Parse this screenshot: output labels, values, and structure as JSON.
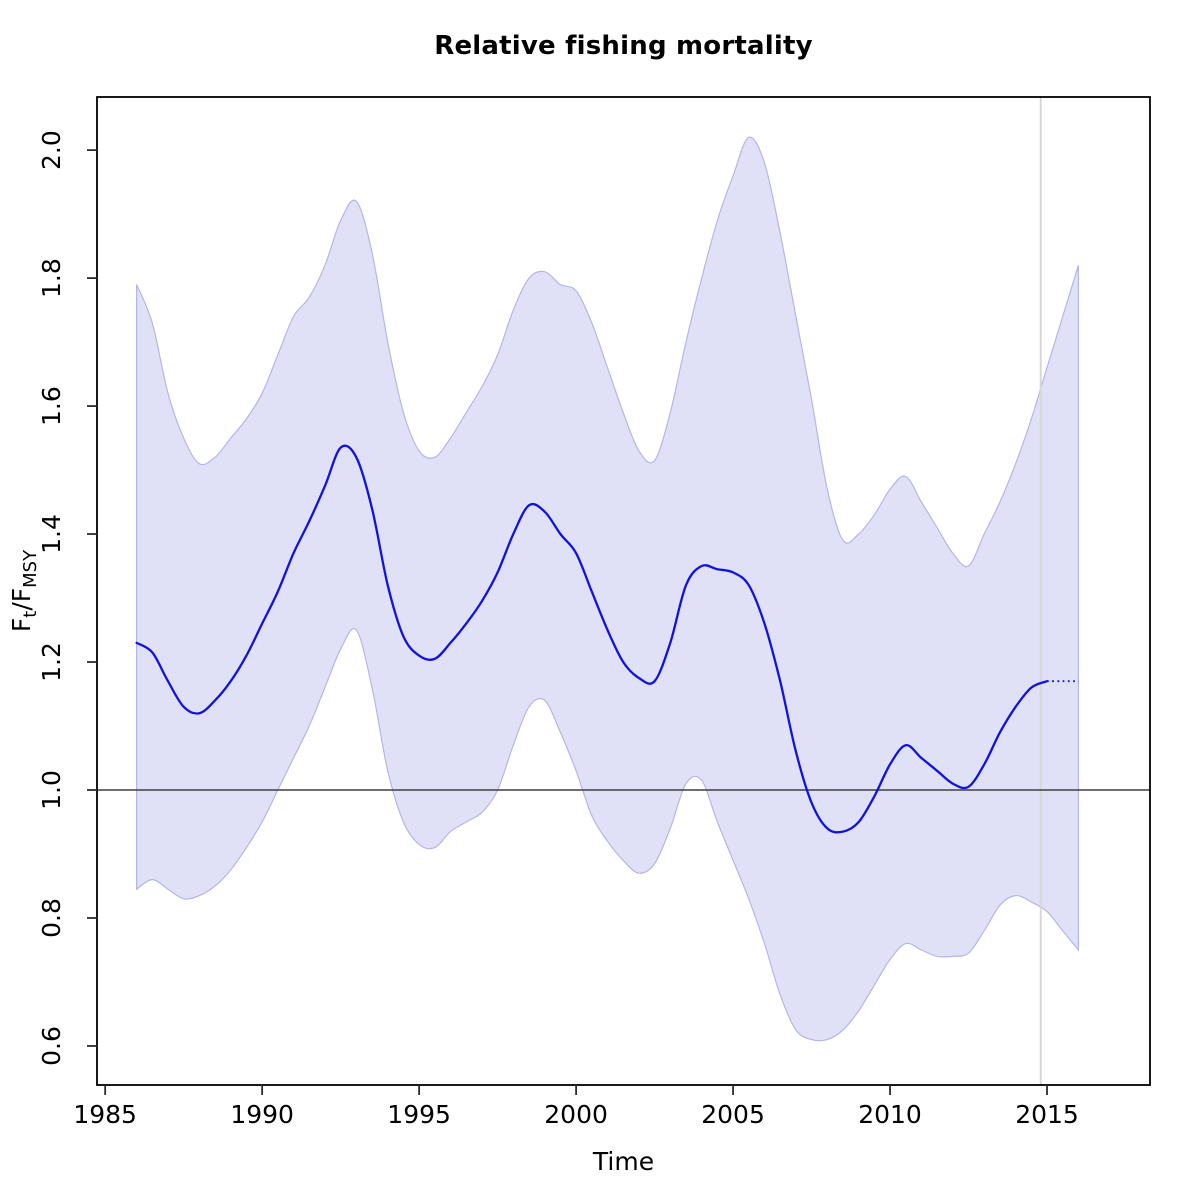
{
  "chart_data": {
    "type": "line",
    "title": "Relative fishing mortality",
    "xlabel": "Time",
    "ylabel": "Ft/FMSY",
    "ylabel_parts": {
      "base1": "F",
      "sub1": "t",
      "mid": "/F",
      "sub2": "MSY"
    },
    "xlim": [
      1984.74,
      2018.28
    ],
    "ylim": [
      0.539,
      2.083
    ],
    "x_ticks": [
      1985,
      1990,
      1995,
      2000,
      2005,
      2010,
      2015
    ],
    "y_ticks": [
      0.6,
      0.8,
      1.0,
      1.2,
      1.4,
      1.6,
      1.8,
      2.0
    ],
    "grid": false,
    "legend": null,
    "reference_lines": {
      "horizontal_y": 1.0,
      "vertical_x": 2014.8
    },
    "forecast_start": 2015,
    "series": {
      "years": [
        1986,
        1986.5,
        1987,
        1987.5,
        1988,
        1988.5,
        1989,
        1989.5,
        1990,
        1990.5,
        1991,
        1991.5,
        1992,
        1992.5,
        1993,
        1993.5,
        1994,
        1994.5,
        1995,
        1995.5,
        1996,
        1996.5,
        1997,
        1997.5,
        1998,
        1998.5,
        1999,
        1999.5,
        2000,
        2000.5,
        2001,
        2001.5,
        2002,
        2002.5,
        2003,
        2003.5,
        2004,
        2004.5,
        2005,
        2005.5,
        2006,
        2006.5,
        2007,
        2007.5,
        2008,
        2008.5,
        2009,
        2009.5,
        2010,
        2010.5,
        2011,
        2011.5,
        2012,
        2012.5,
        2013,
        2013.5,
        2014,
        2014.5,
        2015,
        2015.5,
        2016
      ],
      "median": [
        1.23,
        1.215,
        1.17,
        1.13,
        1.12,
        1.14,
        1.17,
        1.21,
        1.26,
        1.31,
        1.37,
        1.42,
        1.475,
        1.535,
        1.52,
        1.44,
        1.32,
        1.24,
        1.21,
        1.205,
        1.23,
        1.26,
        1.295,
        1.34,
        1.4,
        1.445,
        1.435,
        1.4,
        1.37,
        1.31,
        1.25,
        1.2,
        1.175,
        1.17,
        1.23,
        1.32,
        1.35,
        1.345,
        1.34,
        1.32,
        1.26,
        1.17,
        1.06,
        0.98,
        0.94,
        0.935,
        0.95,
        0.99,
        1.04,
        1.07,
        1.05,
        1.03,
        1.01,
        1.005,
        1.04,
        1.09,
        1.13,
        1.16,
        1.17,
        1.17,
        1.17
      ],
      "lower": [
        0.845,
        0.86,
        0.845,
        0.83,
        0.835,
        0.85,
        0.875,
        0.91,
        0.95,
        1.0,
        1.05,
        1.1,
        1.16,
        1.22,
        1.25,
        1.16,
        1.03,
        0.95,
        0.915,
        0.91,
        0.935,
        0.95,
        0.965,
        1.0,
        1.07,
        1.13,
        1.14,
        1.09,
        1.03,
        0.96,
        0.92,
        0.89,
        0.87,
        0.885,
        0.94,
        1.01,
        1.015,
        0.95,
        0.89,
        0.83,
        0.76,
        0.68,
        0.625,
        0.61,
        0.61,
        0.625,
        0.655,
        0.695,
        0.735,
        0.76,
        0.75,
        0.74,
        0.74,
        0.745,
        0.78,
        0.82,
        0.835,
        0.825,
        0.81,
        0.78,
        0.75
      ],
      "upper": [
        1.79,
        1.73,
        1.62,
        1.55,
        1.51,
        1.52,
        1.55,
        1.58,
        1.62,
        1.68,
        1.74,
        1.77,
        1.82,
        1.89,
        1.92,
        1.84,
        1.7,
        1.59,
        1.53,
        1.52,
        1.55,
        1.59,
        1.63,
        1.68,
        1.75,
        1.8,
        1.81,
        1.79,
        1.78,
        1.73,
        1.66,
        1.59,
        1.53,
        1.515,
        1.59,
        1.7,
        1.8,
        1.89,
        1.96,
        2.02,
        1.98,
        1.87,
        1.74,
        1.61,
        1.47,
        1.39,
        1.4,
        1.43,
        1.47,
        1.49,
        1.45,
        1.41,
        1.37,
        1.35,
        1.4,
        1.45,
        1.51,
        1.58,
        1.66,
        1.74,
        1.82
      ]
    },
    "colors": {
      "median_line": "#1212dd",
      "band_fill": "#e0e1f7",
      "band_border": "#b3b6e8",
      "reference_line": "#3f3f3f",
      "assessment_line": "#d7d7d7",
      "axis": "#2b2b2b"
    }
  }
}
